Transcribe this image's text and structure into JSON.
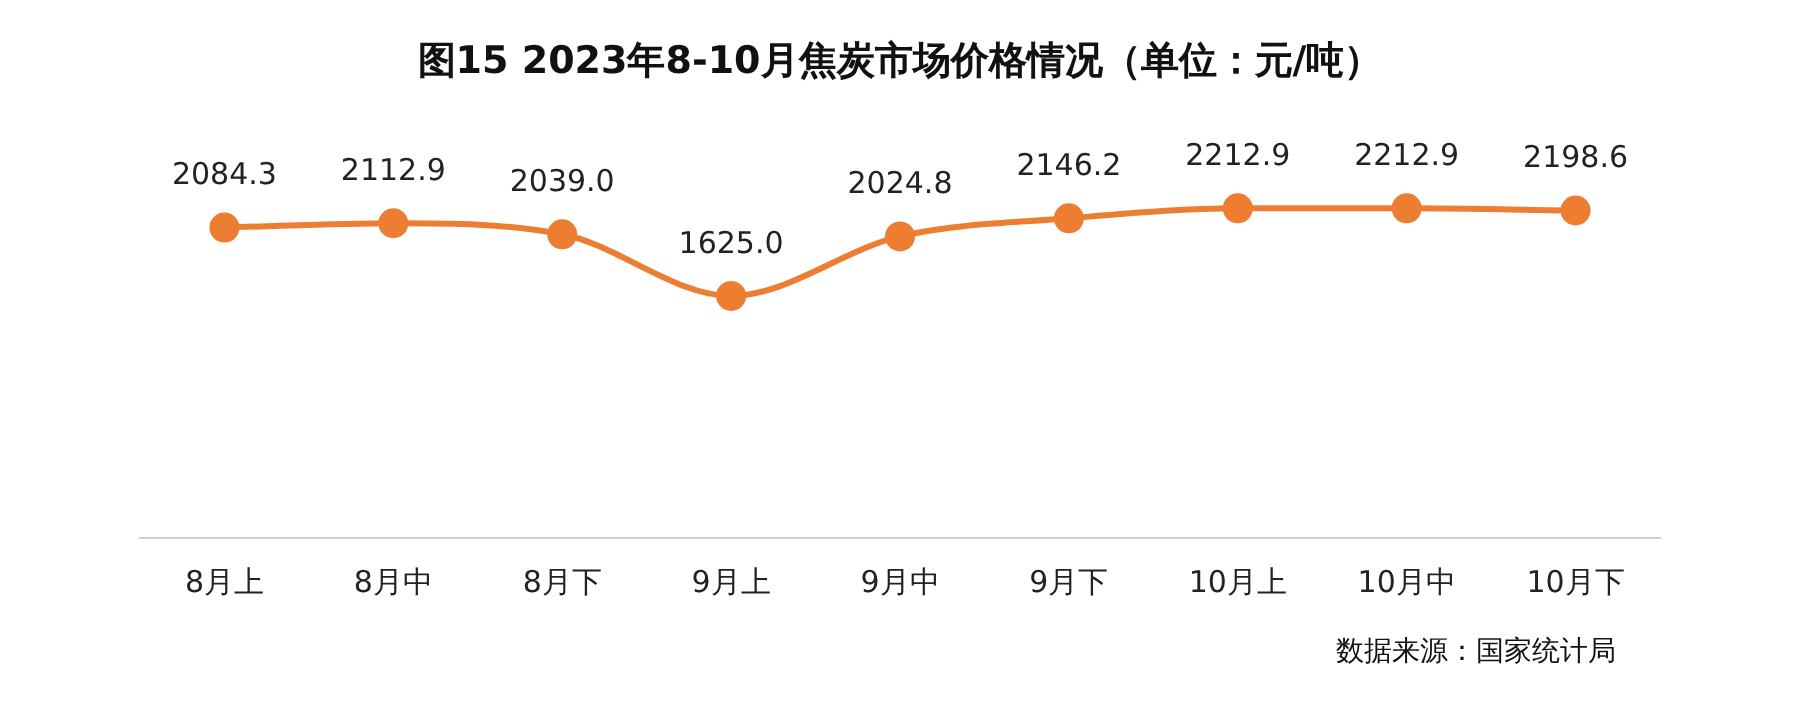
{
  "chart_data": {
    "type": "line",
    "title": "图15 2023年8-10月焦炭市场价格情况（单位：元/吨）",
    "categories": [
      "8月上",
      "8月中",
      "8月下",
      "9月上",
      "9月中",
      "9月下",
      "10月上",
      "10月中",
      "10月下"
    ],
    "series": [
      {
        "color": "#ed7d31",
        "values": [
          2084.3,
          2112.9,
          2039.0,
          1625.0,
          2024.8,
          2146.2,
          2212.9,
          2212.9,
          2198.6
        ],
        "value_labels": [
          "2084.3",
          "2112.9",
          "2039.0",
          "1625.0",
          "2024.8",
          "2146.2",
          "2212.9",
          "2212.9",
          "2198.6"
        ]
      }
    ],
    "marker": "circle",
    "grid": false,
    "legend": false,
    "tick_labels": "x",
    "annotations": [
      "数据来源：国家统计局"
    ]
  }
}
